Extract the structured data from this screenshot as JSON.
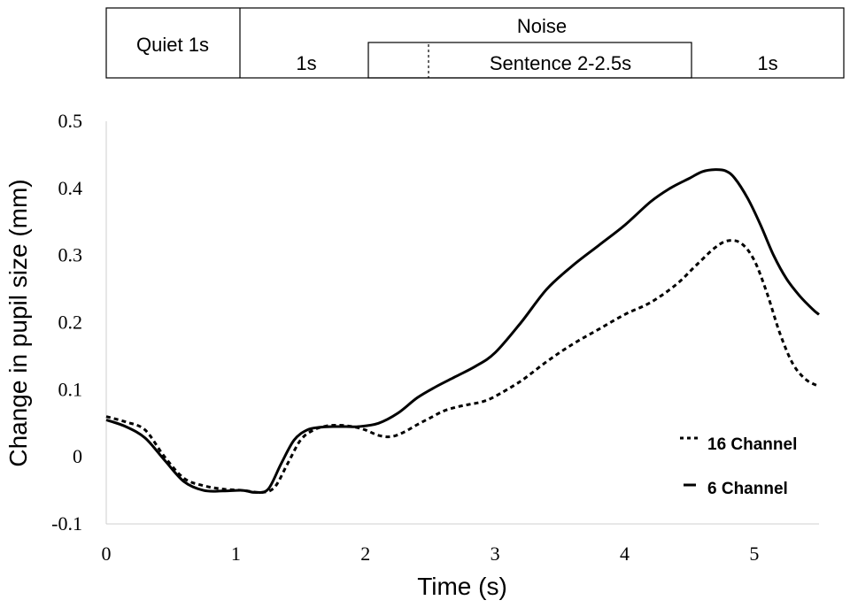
{
  "timeline": {
    "quiet_label": "Quiet 1s",
    "noise_label": "Noise",
    "noise_pre_label": "1s",
    "sentence_label": "Sentence  2-2.5s",
    "noise_post_label": "1s"
  },
  "chart_data": {
    "type": "line",
    "title": "",
    "xlabel": "Time (s)",
    "ylabel": "Change in pupil size (mm)",
    "xlim": [
      0,
      5.5
    ],
    "ylim": [
      -0.1,
      0.5
    ],
    "xticks": [
      0,
      1,
      2,
      3,
      4,
      5
    ],
    "xtick_labels": [
      "0",
      "1",
      "2",
      "3",
      "4",
      "5"
    ],
    "yticks": [
      -0.1,
      0,
      0.1,
      0.2,
      0.3,
      0.4,
      0.5
    ],
    "ytick_labels": [
      "-0.1",
      "0",
      "0.1",
      "0.2",
      "0.3",
      "0.4",
      "0.5"
    ],
    "grid": false,
    "legend_position": "bottom-right",
    "series": [
      {
        "name": "16 Channel",
        "style": "dotted",
        "color": "#000000",
        "x": [
          0,
          0.15,
          0.3,
          0.45,
          0.6,
          0.75,
          0.9,
          1.05,
          1.2,
          1.3,
          1.4,
          1.5,
          1.6,
          1.7,
          1.8,
          1.9,
          2.0,
          2.1,
          2.2,
          2.3,
          2.4,
          2.5,
          2.6,
          2.7,
          2.8,
          2.9,
          3.0,
          3.2,
          3.4,
          3.6,
          3.8,
          4.0,
          4.2,
          4.4,
          4.55,
          4.7,
          4.8,
          4.9,
          5.0,
          5.1,
          5.2,
          5.3,
          5.4,
          5.5
        ],
        "y": [
          0.06,
          0.052,
          0.04,
          0.0,
          -0.032,
          -0.043,
          -0.048,
          -0.05,
          -0.053,
          -0.045,
          -0.01,
          0.025,
          0.04,
          0.046,
          0.047,
          0.045,
          0.04,
          0.032,
          0.03,
          0.037,
          0.048,
          0.058,
          0.068,
          0.074,
          0.078,
          0.082,
          0.09,
          0.113,
          0.142,
          0.168,
          0.19,
          0.212,
          0.23,
          0.257,
          0.285,
          0.312,
          0.322,
          0.318,
          0.293,
          0.243,
          0.183,
          0.138,
          0.115,
          0.105
        ]
      },
      {
        "name": "6 Channel",
        "style": "dashed",
        "color": "#000000",
        "x": [
          0,
          0.15,
          0.3,
          0.45,
          0.6,
          0.75,
          0.9,
          1.05,
          1.15,
          1.25,
          1.35,
          1.45,
          1.55,
          1.65,
          1.75,
          1.85,
          1.95,
          2.1,
          2.25,
          2.4,
          2.55,
          2.7,
          2.85,
          3.0,
          3.2,
          3.4,
          3.6,
          3.8,
          4.0,
          4.2,
          4.35,
          4.5,
          4.6,
          4.7,
          4.78,
          4.85,
          4.95,
          5.05,
          5.15,
          5.25,
          5.35,
          5.45,
          5.5
        ],
        "y": [
          0.055,
          0.045,
          0.028,
          -0.005,
          -0.037,
          -0.05,
          -0.051,
          -0.05,
          -0.053,
          -0.048,
          -0.01,
          0.025,
          0.04,
          0.044,
          0.045,
          0.045,
          0.045,
          0.05,
          0.065,
          0.088,
          0.105,
          0.12,
          0.135,
          0.155,
          0.2,
          0.25,
          0.285,
          0.315,
          0.345,
          0.38,
          0.4,
          0.415,
          0.425,
          0.428,
          0.426,
          0.415,
          0.385,
          0.345,
          0.3,
          0.265,
          0.24,
          0.22,
          0.212
        ]
      }
    ]
  }
}
